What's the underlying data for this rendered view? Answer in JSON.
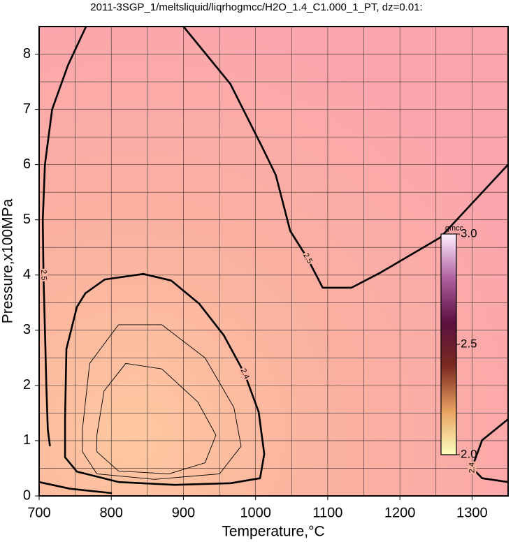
{
  "chart_data": {
    "type": "contour",
    "title": "2011-3SGP_1/meltsliquid/liqrhogmcc/H2O_1.4_C1.000_1_PT, dz=0.01:",
    "x_label": "Temperature,°C",
    "y_label": "Pressure,x100MPa",
    "xlim": [
      700,
      1350
    ],
    "ylim": [
      0,
      8.5
    ],
    "xticks": [
      700,
      800,
      900,
      1000,
      1100,
      1200,
      1300
    ],
    "yticks": [
      0,
      1,
      2,
      3,
      4,
      5,
      6,
      7,
      8
    ],
    "xgrid": [
      700,
      750,
      800,
      850,
      900,
      950,
      1000,
      1050,
      1100,
      1150,
      1200,
      1250,
      1300,
      1350
    ],
    "ygrid": [
      0,
      0.5,
      1,
      1.5,
      2,
      2.5,
      3,
      3.5,
      4,
      4.5,
      5,
      5.5,
      6,
      6.5,
      7,
      7.5,
      8,
      8.5
    ],
    "grid": true,
    "line_color": "#000000",
    "contours": [
      {
        "level": 2.5,
        "bold": true,
        "x": [
          765,
          740,
          718,
          708,
          705,
          706,
          708,
          710,
          712,
          715
        ],
        "y": [
          8.5,
          7.8,
          7.0,
          6.0,
          5.0,
          4.0,
          3.0,
          2.0,
          1.2,
          0.9
        ]
      },
      {
        "level": 2.5,
        "bold": true,
        "x": [
          900,
          965,
          1009,
          1028,
          1048,
          1072,
          1093,
          1133,
          1174,
          1256,
          1350
        ],
        "y": [
          8.5,
          7.46,
          6.32,
          5.81,
          4.8,
          4.3,
          3.77,
          3.77,
          4.05,
          4.68,
          6.0
        ]
      },
      {
        "level": 2.4,
        "bold": true,
        "x": [
          735.9,
          735.9,
          737.8,
          752.3,
          764,
          791.1,
          844.4,
          883.1,
          921.9,
          955.8,
          984.9,
          1004.3,
          1012,
          1006.2,
          965.5,
          888,
          810.5,
          752.3,
          735.9,
          735.9
        ],
        "y": [
          0.89,
          1.39,
          2.66,
          3.42,
          3.67,
          3.92,
          4.02,
          3.9,
          3.48,
          2.91,
          2.21,
          1.52,
          0.76,
          0.32,
          0.23,
          0.2,
          0.25,
          0.44,
          0.7,
          0.89
        ]
      },
      {
        "level": 2.4,
        "bold": true,
        "x": [
          1350,
          1314,
          1300,
          1314,
          1350
        ],
        "y": [
          0.25,
          0.32,
          0.51,
          1.01,
          1.39
        ]
      },
      {
        "level": 2.5,
        "bold": true,
        "x": [
          700,
          742.6,
          800.8
        ],
        "y": [
          0.25,
          0.13,
          0.05
        ]
      },
      {
        "level": 2.35,
        "bold": false,
        "x": [
          760,
          770,
          810,
          870,
          930,
          970,
          980,
          950,
          860,
          780,
          760,
          760
        ],
        "y": [
          1.2,
          2.4,
          3.1,
          3.1,
          2.5,
          1.6,
          0.9,
          0.4,
          0.3,
          0.4,
          0.8,
          1.2
        ]
      },
      {
        "level": 2.3,
        "bold": false,
        "x": [
          780,
          790,
          820,
          870,
          920,
          945,
          930,
          880,
          810,
          780,
          780
        ],
        "y": [
          1.1,
          1.9,
          2.4,
          2.3,
          1.7,
          1.1,
          0.6,
          0.4,
          0.45,
          0.8,
          1.1
        ]
      }
    ],
    "colorbar": {
      "label": "gmcc",
      "lim": [
        2,
        3
      ],
      "ticks": [
        {
          "value": 2,
          "label": "2.0"
        },
        2.5,
        {
          "value": 3,
          "label": "3.0"
        }
      ],
      "colors": [
        "#ffffc0",
        "#e8a060",
        "#7a2a20",
        "#5a1040",
        "#b060a0",
        "#fff0ff"
      ]
    }
  }
}
